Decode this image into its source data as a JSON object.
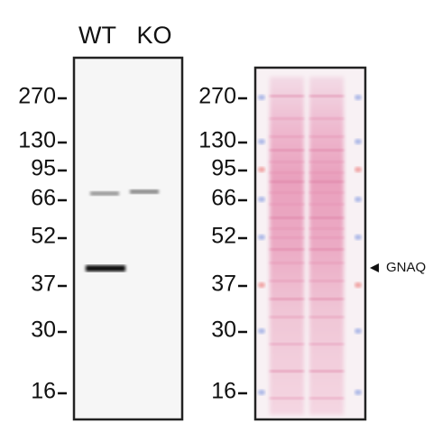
{
  "lanes": [
    "WT",
    "KO"
  ],
  "markers_left": [
    "270",
    "130",
    "95",
    "66",
    "52",
    "37",
    "30",
    "16"
  ],
  "markers_right": [
    "270",
    "130",
    "95",
    "66",
    "52",
    "37",
    "30",
    "16"
  ],
  "band_label": "GNAQ"
}
